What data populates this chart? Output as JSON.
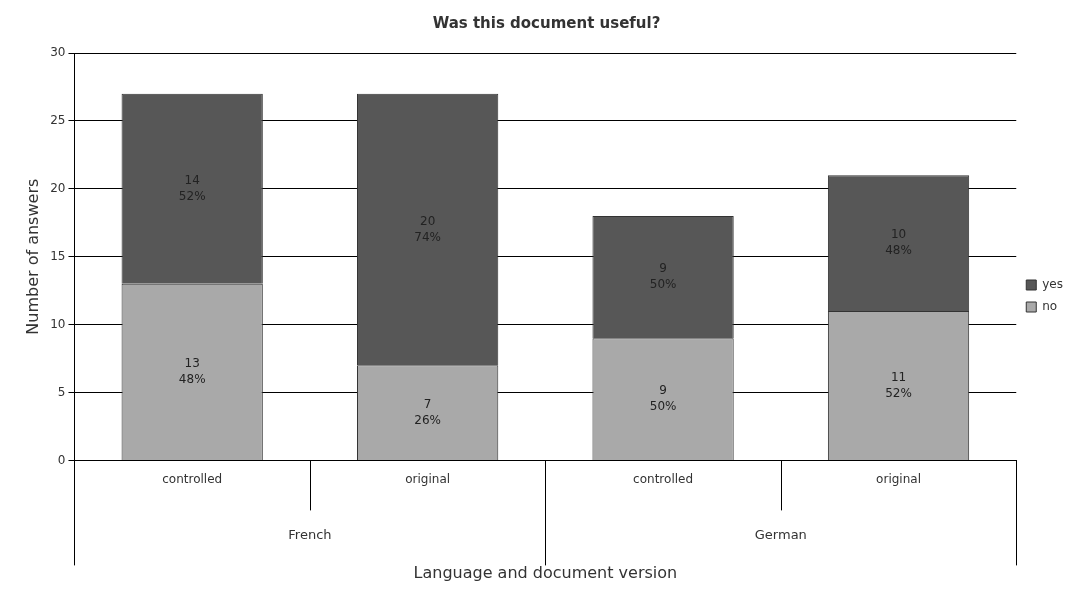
{
  "chart_data": {
    "type": "bar",
    "title": "Was this document useful?",
    "xlabel": "Language and document version",
    "ylabel": "Number of answers",
    "categories": [
      "controlled",
      "original",
      "controlled",
      "original"
    ],
    "annotations": [
      "French",
      "German"
    ],
    "stacked": true,
    "series": [
      {
        "name": "no",
        "color": "#a9a9a9",
        "values": [
          13,
          7,
          9,
          11
        ],
        "value_labels": [
          "13\n48%",
          "7\n26%",
          "9\n50%",
          "11\n52%"
        ]
      },
      {
        "name": "yes",
        "color": "#575757",
        "values": [
          14,
          20,
          9,
          10
        ],
        "value_labels": [
          "14\n52%",
          "20\n74%",
          "9\n50%",
          "10\n48%"
        ]
      }
    ],
    "ylim": [
      0,
      30
    ],
    "yticks": [
      0,
      5,
      10,
      15,
      20,
      25,
      30
    ],
    "grid": "y",
    "legend": "right"
  }
}
